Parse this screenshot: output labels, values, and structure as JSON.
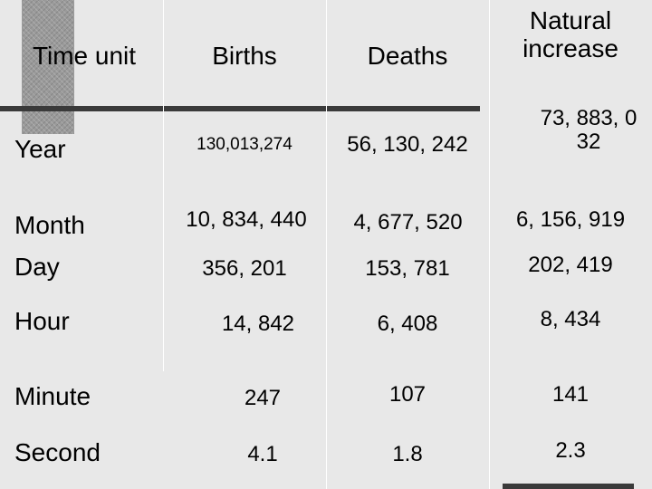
{
  "table": {
    "headers": [
      "Time unit",
      "Births",
      "Deaths",
      "Natural increase"
    ],
    "rows": [
      {
        "unit": "Year",
        "births": "130,013,274",
        "deaths": "56, 130, 242",
        "increase": "73, 883, 032"
      },
      {
        "unit": "Month",
        "births": "10, 834, 440",
        "deaths": "4, 677, 520",
        "increase": "6, 156, 919"
      },
      {
        "unit": "Day",
        "births": "356, 201",
        "deaths": "153, 781",
        "increase": "202, 419"
      },
      {
        "unit": "Hour",
        "births": "14, 842",
        "deaths": "6, 408",
        "increase": "8, 434"
      },
      {
        "unit": "Minute",
        "births": "247",
        "deaths": "107",
        "increase": "141"
      },
      {
        "unit": "Second",
        "births": "4.1",
        "deaths": "1.8",
        "increase": "2.3"
      }
    ]
  }
}
